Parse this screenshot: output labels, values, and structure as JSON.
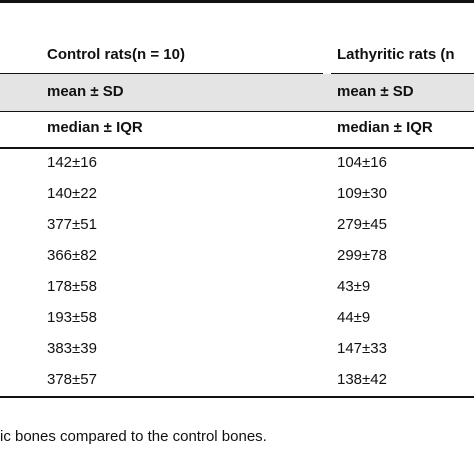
{
  "table": {
    "header": [
      "Control rats(n = 10)",
      "Lathyritic rats (n"
    ],
    "subheaders": [
      [
        "mean ± SD",
        "mean ± SD"
      ],
      [
        "median ± IQR",
        "median ± IQR"
      ]
    ],
    "rows": [
      [
        "142±16",
        "104±16"
      ],
      [
        "140±22",
        "109±30"
      ],
      [
        "377±51",
        "279±45"
      ],
      [
        "366±82",
        "299±78"
      ],
      [
        "178±58",
        "43±9"
      ],
      [
        "193±58",
        "44±9"
      ],
      [
        "383±39",
        "147±33"
      ],
      [
        "378±57",
        "138±42"
      ]
    ]
  },
  "footnote": "ic bones compared to the control bones."
}
